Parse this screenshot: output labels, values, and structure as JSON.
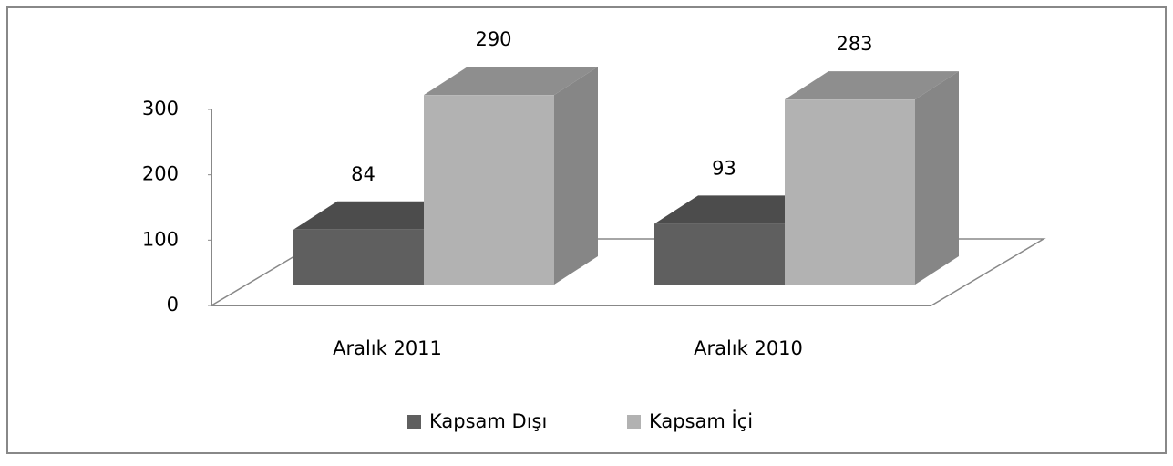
{
  "chart_data": {
    "type": "bar3d",
    "categories": [
      "Aralık 2011",
      "Aralık 2010"
    ],
    "series": [
      {
        "name": "Kapsam Dışı",
        "color": "#5f5f5f",
        "values": [
          84,
          93
        ]
      },
      {
        "name": "Kapsam İçi",
        "color": "#b2b2b2",
        "values": [
          290,
          283
        ]
      }
    ],
    "ylim": [
      0,
      300
    ],
    "yticks": [
      0,
      100,
      200,
      300
    ],
    "legend": "bottom"
  }
}
